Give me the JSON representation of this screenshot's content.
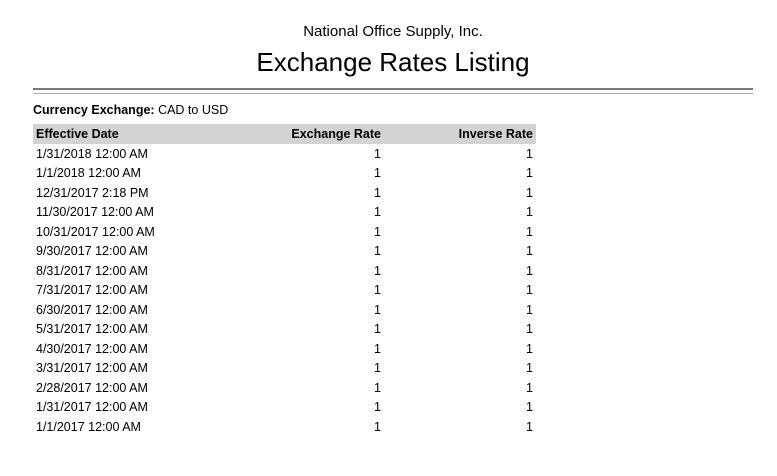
{
  "report": {
    "company": "National Office Supply, Inc.",
    "title": "Exchange Rates Listing",
    "filter": {
      "label": "Currency Exchange:",
      "value": "CAD to USD"
    }
  },
  "table": {
    "columns": [
      "Effective Date",
      "Exchange Rate",
      "Inverse Rate"
    ],
    "rows": [
      {
        "date": "1/31/2018 12:00 AM",
        "rate": "1",
        "inverse": "1"
      },
      {
        "date": "1/1/2018 12:00 AM",
        "rate": "1",
        "inverse": "1"
      },
      {
        "date": "12/31/2017 2:18 PM",
        "rate": "1",
        "inverse": "1"
      },
      {
        "date": "11/30/2017 12:00 AM",
        "rate": "1",
        "inverse": "1"
      },
      {
        "date": "10/31/2017 12:00 AM",
        "rate": "1",
        "inverse": "1"
      },
      {
        "date": "9/30/2017 12:00 AM",
        "rate": "1",
        "inverse": "1"
      },
      {
        "date": "8/31/2017 12:00 AM",
        "rate": "1",
        "inverse": "1"
      },
      {
        "date": "7/31/2017 12:00 AM",
        "rate": "1",
        "inverse": "1"
      },
      {
        "date": "6/30/2017 12:00 AM",
        "rate": "1",
        "inverse": "1"
      },
      {
        "date": "5/31/2017 12:00 AM",
        "rate": "1",
        "inverse": "1"
      },
      {
        "date": "4/30/2017 12:00 AM",
        "rate": "1",
        "inverse": "1"
      },
      {
        "date": "3/31/2017 12:00 AM",
        "rate": "1",
        "inverse": "1"
      },
      {
        "date": "2/28/2017 12:00 AM",
        "rate": "1",
        "inverse": "1"
      },
      {
        "date": "1/31/2017 12:00 AM",
        "rate": "1",
        "inverse": "1"
      },
      {
        "date": "1/1/2017 12:00 AM",
        "rate": "1",
        "inverse": "1"
      }
    ]
  },
  "colors": {
    "table_header_bg": "#d3d3d3",
    "rule_dark": "#7a7a7a",
    "rule_light": "#ababab",
    "text": "#000000",
    "page_bg": "#ffffff"
  }
}
